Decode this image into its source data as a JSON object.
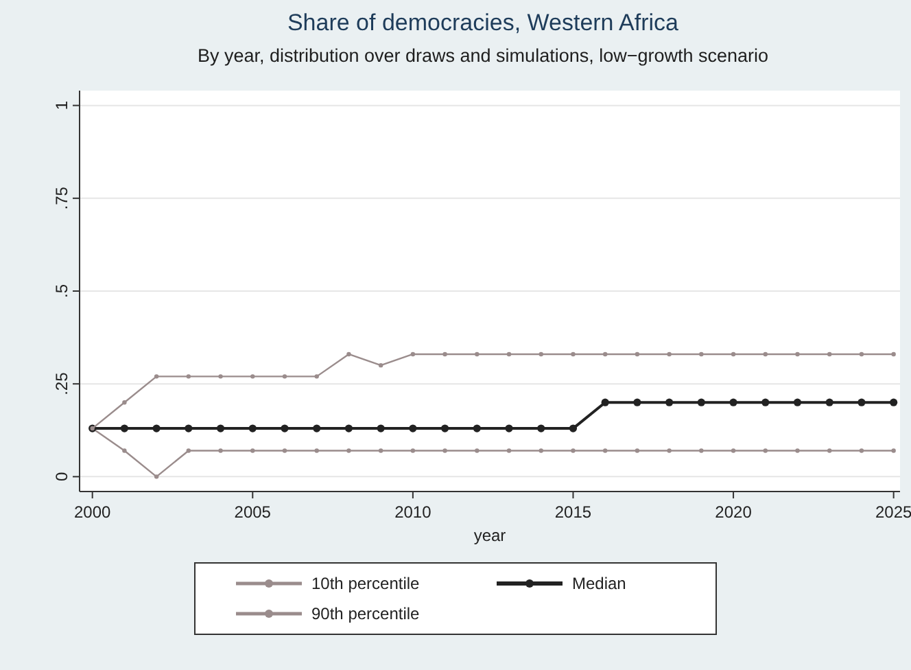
{
  "chart_data": {
    "type": "line",
    "title": "Share of democracies, Western Africa",
    "subtitle": "By year, distribution over draws and simulations, low−growth scenario",
    "xlabel": "year",
    "x": [
      2000,
      2001,
      2002,
      2003,
      2004,
      2005,
      2006,
      2007,
      2008,
      2009,
      2010,
      2011,
      2012,
      2013,
      2014,
      2015,
      2016,
      2017,
      2018,
      2019,
      2020,
      2021,
      2022,
      2023,
      2024,
      2025
    ],
    "series": [
      {
        "name": "10th percentile",
        "color": "#9a8c8c",
        "values": [
          0.13,
          0.07,
          0,
          0.07,
          0.07,
          0.07,
          0.07,
          0.07,
          0.07,
          0.07,
          0.07,
          0.07,
          0.07,
          0.07,
          0.07,
          0.07,
          0.07,
          0.07,
          0.07,
          0.07,
          0.07,
          0.07,
          0.07,
          0.07,
          0.07,
          0.07
        ]
      },
      {
        "name": "Median",
        "color": "#222222",
        "values": [
          0.13,
          0.13,
          0.13,
          0.13,
          0.13,
          0.13,
          0.13,
          0.13,
          0.13,
          0.13,
          0.13,
          0.13,
          0.13,
          0.13,
          0.13,
          0.13,
          0.2,
          0.2,
          0.2,
          0.2,
          0.2,
          0.2,
          0.2,
          0.2,
          0.2,
          0.2
        ]
      },
      {
        "name": "90th percentile",
        "color": "#9a8c8c",
        "values": [
          0.13,
          0.2,
          0.27,
          0.27,
          0.27,
          0.27,
          0.27,
          0.27,
          0.33,
          0.3,
          0.33,
          0.33,
          0.33,
          0.33,
          0.33,
          0.33,
          0.33,
          0.33,
          0.33,
          0.33,
          0.33,
          0.33,
          0.33,
          0.33,
          0.33,
          0.33
        ]
      }
    ],
    "xlim": [
      1999.6,
      2025.2
    ],
    "xticks": [
      2000,
      2005,
      2010,
      2015,
      2020,
      2025
    ],
    "ylim": [
      -0.04,
      1.04
    ],
    "yticks": [
      {
        "value": 0,
        "label": "0"
      },
      {
        "value": 0.25,
        "label": ".25"
      },
      {
        "value": 0.5,
        "label": ".5"
      },
      {
        "value": 0.75,
        "label": ".75"
      },
      {
        "value": 1,
        "label": "1"
      }
    ],
    "grid": "y",
    "legend": "bottom",
    "marker": "circle",
    "line_style": "solid"
  }
}
